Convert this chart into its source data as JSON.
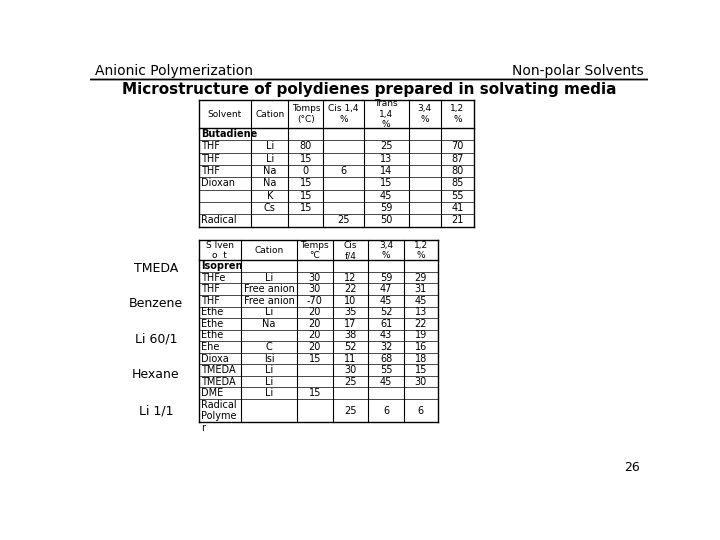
{
  "header_left": "Anionic Polymerization",
  "header_right": "Non-polar Solvents",
  "title": "Microstructure of polydienes prepared in solvating media",
  "page_number": "26",
  "left_labels": [
    "TMEDA",
    "Benzene",
    "Li 60/1",
    "Hexane",
    "Li 1/1"
  ],
  "table1_headers": [
    "Solvent",
    "Cation",
    "Tomps\n(°C)",
    "Cis 1,4\n%",
    "Trans\n1,4\n%",
    "3,4\n%",
    "1,2\n%"
  ],
  "table1_rows": [
    [
      "Butadiene",
      "",
      "",
      "",
      "",
      "",
      ""
    ],
    [
      "THF",
      "Li",
      "80",
      "",
      "25",
      "",
      "70"
    ],
    [
      "THF",
      "Li",
      "15",
      "",
      "13",
      "",
      "87"
    ],
    [
      "THF",
      "Na",
      "0",
      "6",
      "14",
      "",
      "80"
    ],
    [
      "Dioxan",
      "Na",
      "15",
      "",
      "15",
      "",
      "85"
    ],
    [
      "",
      "K",
      "15",
      "",
      "45",
      "",
      "55"
    ],
    [
      "",
      "Cs",
      "15",
      "",
      "59",
      "",
      "41"
    ],
    [
      "Radical",
      "",
      "",
      "25",
      "50",
      "",
      "21"
    ]
  ],
  "table2_headers": [
    "S lven\no  t",
    "Cation",
    "Temps\n°C",
    "Cis\nf/4",
    "3,4\n%",
    "1,2\n%"
  ],
  "table2_rows": [
    [
      "Isopren",
      "",
      "",
      "",
      "",
      ""
    ],
    [
      "THFe",
      "Li",
      "30",
      "12",
      "59",
      "29"
    ],
    [
      "THF",
      "Free anion",
      "30",
      "22",
      "47",
      "31"
    ],
    [
      "THF",
      "Free anion",
      "-70",
      "10",
      "45",
      "45"
    ],
    [
      "Ethe",
      "Li",
      "20",
      "35",
      "52",
      "13"
    ],
    [
      "Ethe",
      "Na",
      "20",
      "17",
      "61",
      "22"
    ],
    [
      "Ethe",
      "",
      "20",
      "38",
      "43",
      "19"
    ],
    [
      "Ehe",
      "C",
      "20",
      "52",
      "32",
      "16"
    ],
    [
      "Dioxa",
      "lsi",
      "15",
      "11",
      "68",
      "18"
    ],
    [
      "TMEDA",
      "Li",
      "",
      "30",
      "55",
      "15"
    ],
    [
      "TMEDA",
      "Li",
      "",
      "25",
      "45",
      "30"
    ],
    [
      "DME",
      "Li",
      "15",
      "",
      "",
      ""
    ],
    [
      "Radical\nPolyme",
      "",
      "",
      "25",
      "6",
      "6"
    ]
  ],
  "table2_last_label": "r",
  "bg_color": "#ffffff",
  "text_color": "#000000"
}
